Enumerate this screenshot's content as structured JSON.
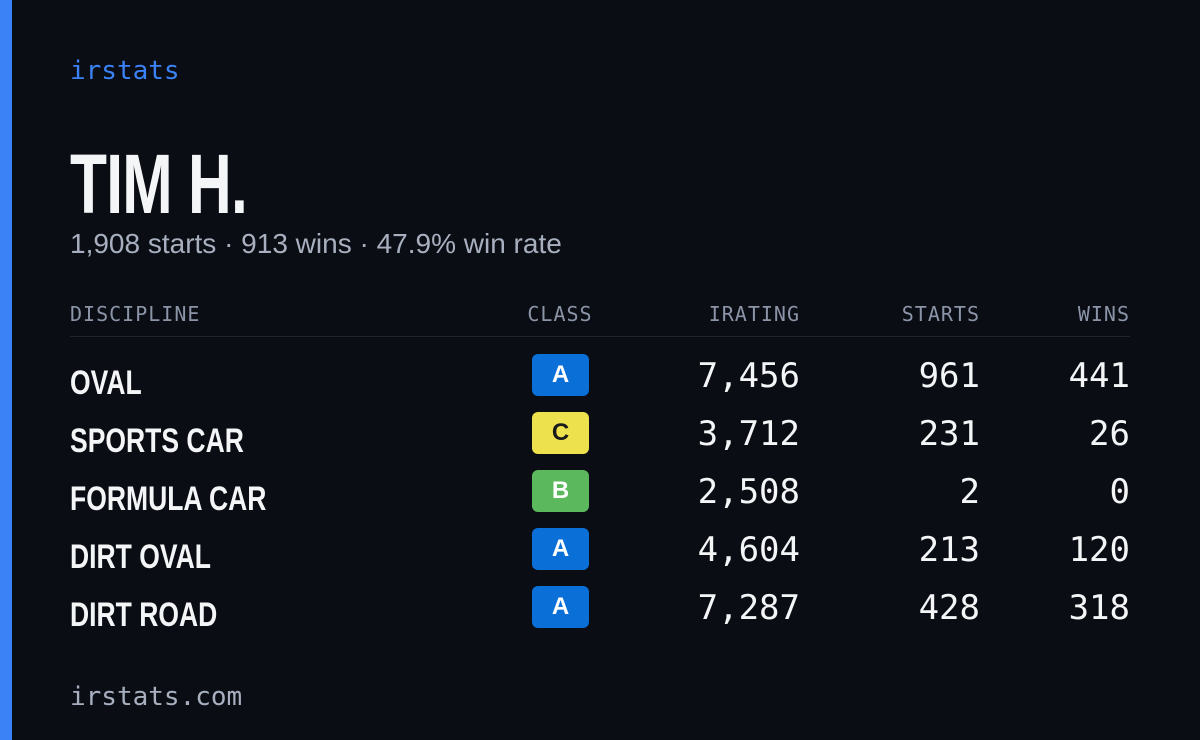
{
  "brand": "irstats",
  "driver": {
    "name": "TIM H.",
    "summary": "1,908 starts · 913 wins · 47.9% win rate"
  },
  "table": {
    "headers": [
      "DISCIPLINE",
      "CLASS",
      "IRATING",
      "STARTS",
      "WINS"
    ],
    "rows": [
      {
        "discipline": "OVAL",
        "class": "A",
        "class_color": "#0b6fd8",
        "class_text_color": "#ffffff",
        "irating": "7,456",
        "starts": "961",
        "wins": "441"
      },
      {
        "discipline": "SPORTS CAR",
        "class": "C",
        "class_color": "#ede24e",
        "class_text_color": "#1a1a1a",
        "irating": "3,712",
        "starts": "231",
        "wins": "26"
      },
      {
        "discipline": "FORMULA CAR",
        "class": "B",
        "class_color": "#5cb85c",
        "class_text_color": "#ffffff",
        "irating": "2,508",
        "starts": "2",
        "wins": "0"
      },
      {
        "discipline": "DIRT OVAL",
        "class": "A",
        "class_color": "#0b6fd8",
        "class_text_color": "#ffffff",
        "irating": "4,604",
        "starts": "213",
        "wins": "120"
      },
      {
        "discipline": "DIRT ROAD",
        "class": "A",
        "class_color": "#0b6fd8",
        "class_text_color": "#ffffff",
        "irating": "7,287",
        "starts": "428",
        "wins": "318"
      }
    ]
  },
  "footer": "irstats.com"
}
